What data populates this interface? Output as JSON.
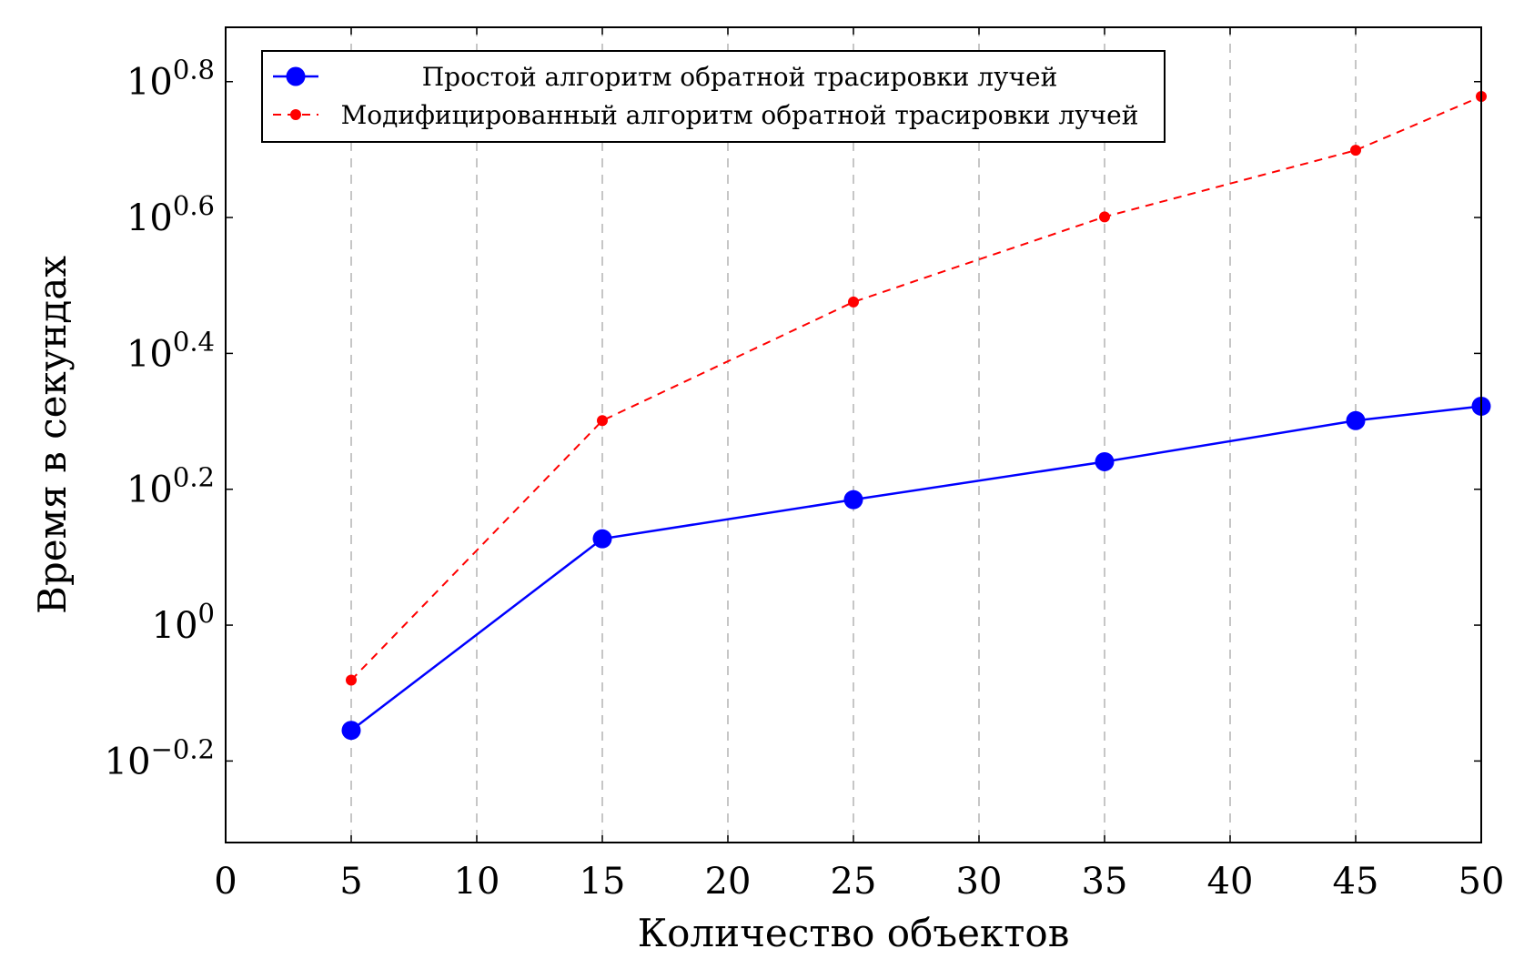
{
  "chart_data": {
    "type": "line",
    "xlabel": "Количество объектов",
    "ylabel": "Время в секундах",
    "xlim": [
      0,
      50
    ],
    "ylim_log10": [
      -0.32,
      0.88
    ],
    "yscale": "log10",
    "x_ticks": [
      0,
      5,
      10,
      15,
      20,
      25,
      30,
      35,
      40,
      45,
      50
    ],
    "y_ticks_exponents": [
      -0.2,
      0,
      0.2,
      0.4,
      0.6,
      0.8
    ],
    "y_tick_labels": [
      {
        "base": "10",
        "exp": "−0.2"
      },
      {
        "base": "10",
        "exp": "0"
      },
      {
        "base": "10",
        "exp": "0.2"
      },
      {
        "base": "10",
        "exp": "0.4"
      },
      {
        "base": "10",
        "exp": "0.6"
      },
      {
        "base": "10",
        "exp": "0.8"
      }
    ],
    "grid": "vertical dashed",
    "legend_position": "top-left",
    "x": [
      5,
      15,
      25,
      35,
      45,
      50
    ],
    "series": [
      {
        "name": "Простой алгоритм обратной трасировки лучей",
        "y": [
          0.7,
          1.34,
          1.53,
          1.74,
          2.0,
          2.1
        ],
        "color": "#0000ff",
        "style": "solid"
      },
      {
        "name": "Модифицированный алгоритм обратной трасировки лучей",
        "y": [
          0.83,
          2.0,
          2.99,
          3.99,
          5.0,
          6.0
        ],
        "color": "#ff0000",
        "style": "dashed"
      }
    ]
  }
}
